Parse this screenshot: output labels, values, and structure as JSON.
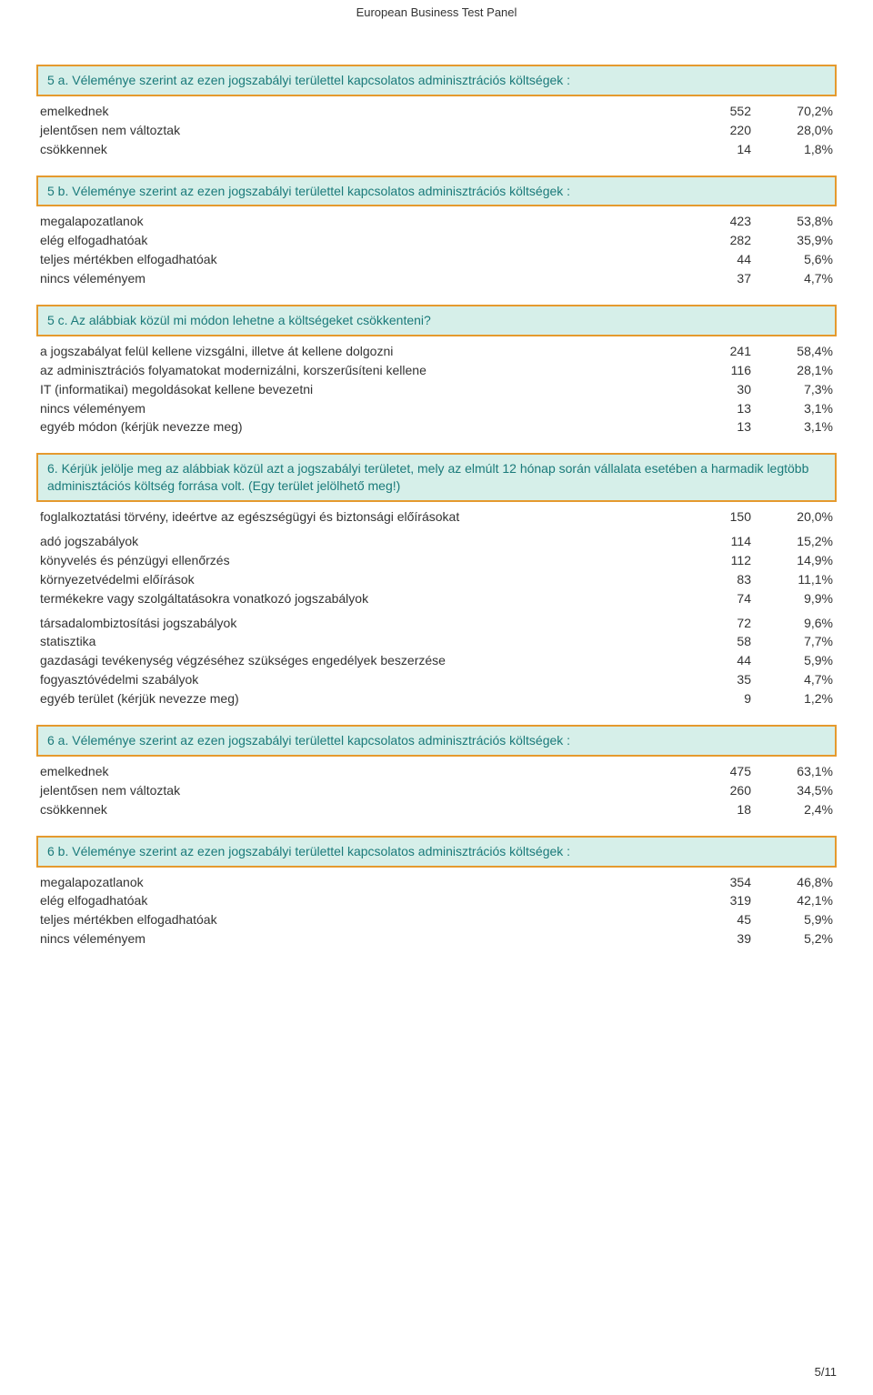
{
  "colors": {
    "question_bg": "#d6efe9",
    "question_border": "#e59a2e",
    "question_text": "#1a7a7a",
    "header_text": "#333333",
    "body_text": "#333333",
    "page_bg": "#ffffff"
  },
  "fonts": {
    "header_family": "Verdana, Arial, sans-serif",
    "question_family": "Verdana, Arial, sans-serif",
    "body_family": "Verdana, Arial, sans-serif",
    "header_size_pt": 10,
    "question_size_pt": 11,
    "body_size_pt": 11
  },
  "header": "European Business Test Panel",
  "page_number": "5/11",
  "sections": [
    {
      "id": "q5a",
      "question": "5 a. Véleménye szerint az ezen jogszabályi területtel kapcsolatos adminisztrációs költségek :",
      "rows": [
        {
          "label": "emelkednek",
          "count": "552",
          "pct": "70,2%"
        },
        {
          "label": "jelentősen nem változtak",
          "count": "220",
          "pct": "28,0%"
        },
        {
          "label": "csökkennek",
          "count": "14",
          "pct": "1,8%"
        }
      ]
    },
    {
      "id": "q5b",
      "question": "5 b. Véleménye szerint az ezen jogszabályi területtel kapcsolatos adminisztrációs költségek :",
      "rows": [
        {
          "label": "megalapozatlanok",
          "count": "423",
          "pct": "53,8%"
        },
        {
          "label": "elég elfogadhatóak",
          "count": "282",
          "pct": "35,9%"
        },
        {
          "label": "teljes mértékben elfogadhatóak",
          "count": "44",
          "pct": "5,6%"
        },
        {
          "label": "nincs véleményem",
          "count": "37",
          "pct": "4,7%"
        }
      ]
    },
    {
      "id": "q5c",
      "question": "5 c. Az alábbiak közül mi módon lehetne a költségeket csökkenteni?",
      "rows": [
        {
          "label": "a jogszabályat felül kellene vizsgálni, illetve át kellene dolgozni",
          "count": "241",
          "pct": "58,4%"
        },
        {
          "label": "az adminisztrációs folyamatokat modernizálni, korszerűsíteni kellene",
          "count": "116",
          "pct": "28,1%"
        },
        {
          "label": "IT (informatikai) megoldásokat kellene bevezetni",
          "count": "30",
          "pct": "7,3%"
        },
        {
          "label": "nincs véleményem",
          "count": "13",
          "pct": "3,1%"
        },
        {
          "label": "egyéb módon (kérjük nevezze meg)",
          "count": "13",
          "pct": "3,1%"
        }
      ]
    },
    {
      "id": "q6",
      "question": "6. Kérjük jelölje meg az alábbiak közül azt a jogszabályi területet, mely az elmúlt 12 hónap során vállalata esetében a harmadik legtöbb adminisztációs költség forrása volt. (Egy terület jelölhető meg!)",
      "groups": [
        [
          {
            "label": "foglalkoztatási törvény, ideértve az egészségügyi és biztonsági előírásokat",
            "count": "150",
            "pct": "20,0%"
          }
        ],
        [
          {
            "label": "adó jogszabályok",
            "count": "114",
            "pct": "15,2%"
          },
          {
            "label": "könyvelés és pénzügyi ellenőrzés",
            "count": "112",
            "pct": "14,9%"
          },
          {
            "label": "környezetvédelmi előírások",
            "count": "83",
            "pct": "11,1%"
          },
          {
            "label": "termékekre vagy szolgáltatásokra vonatkozó jogszabályok",
            "count": "74",
            "pct": "9,9%"
          }
        ],
        [
          {
            "label": "társadalombiztosítási jogszabályok",
            "count": "72",
            "pct": "9,6%"
          },
          {
            "label": "statisztika",
            "count": "58",
            "pct": "7,7%"
          },
          {
            "label": "gazdasági tevékenység végzéséhez szükséges engedélyek beszerzése",
            "count": "44",
            "pct": "5,9%"
          },
          {
            "label": "fogyasztóvédelmi szabályok",
            "count": "35",
            "pct": "4,7%"
          },
          {
            "label": "egyéb terület (kérjük nevezze meg)",
            "count": "9",
            "pct": "1,2%"
          }
        ]
      ]
    },
    {
      "id": "q6a",
      "question": "6 a. Véleménye szerint az ezen jogszabályi területtel kapcsolatos adminisztrációs költségek :",
      "rows": [
        {
          "label": "emelkednek",
          "count": "475",
          "pct": "63,1%"
        },
        {
          "label": "jelentősen nem változtak",
          "count": "260",
          "pct": "34,5%"
        },
        {
          "label": "csökkennek",
          "count": "18",
          "pct": "2,4%"
        }
      ]
    },
    {
      "id": "q6b",
      "question": "6 b. Véleménye szerint az ezen jogszabályi területtel kapcsolatos adminisztrációs költségek :",
      "rows": [
        {
          "label": "megalapozatlanok",
          "count": "354",
          "pct": "46,8%"
        },
        {
          "label": "elég elfogadhatóak",
          "count": "319",
          "pct": "42,1%"
        },
        {
          "label": "teljes mértékben elfogadhatóak",
          "count": "45",
          "pct": "5,9%"
        },
        {
          "label": "nincs véleményem",
          "count": "39",
          "pct": "5,2%"
        }
      ]
    }
  ]
}
